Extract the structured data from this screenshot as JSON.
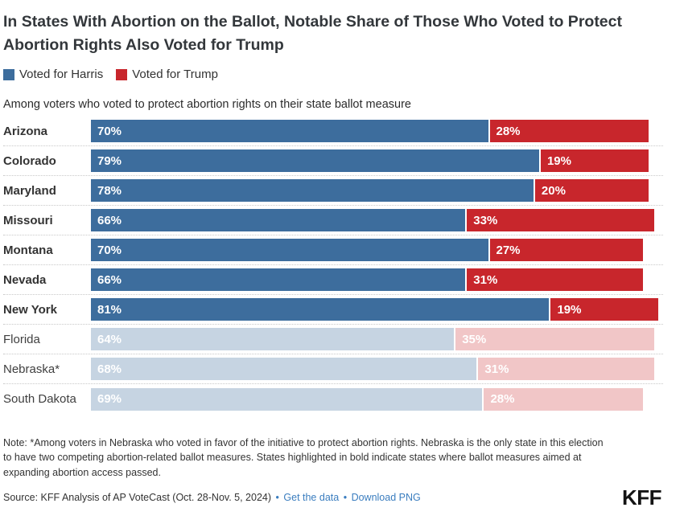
{
  "header": {
    "title": "In States With Abortion on the Ballot, Notable Share of Those Who Voted to Protect Abortion Rights Also Voted for Trump",
    "legend": [
      {
        "label": "Voted for Harris",
        "color": "#3d6d9d"
      },
      {
        "label": "Voted for Trump",
        "color": "#c8262c"
      }
    ],
    "subtitle": "Among voters who voted to protect abortion rights on their state ballot measure"
  },
  "chart_data": {
    "type": "bar",
    "orientation": "horizontal",
    "stacked": true,
    "unit": "%",
    "xlim": [
      0,
      100
    ],
    "grid": "dotted-row-separators",
    "categories": [
      "Arizona",
      "Colorado",
      "Maryland",
      "Missouri",
      "Montana",
      "Nevada",
      "New York",
      "Florida",
      "Nebraska*",
      "South Dakota"
    ],
    "series": [
      {
        "name": "Voted for Harris",
        "values": [
          70,
          79,
          78,
          66,
          70,
          66,
          81,
          64,
          68,
          69
        ]
      },
      {
        "name": "Voted for Trump",
        "values": [
          28,
          19,
          20,
          33,
          27,
          31,
          19,
          35,
          31,
          28
        ]
      }
    ],
    "ballot_measure_passed": [
      true,
      true,
      true,
      true,
      true,
      true,
      true,
      false,
      false,
      false
    ],
    "colors": {
      "harris": "#3d6d9d",
      "trump": "#c8262c",
      "harris_muted": "#c6d4e2",
      "trump_muted": "#f1c6c7"
    }
  },
  "footer": {
    "note": "Note: *Among voters in Nebraska who voted in favor of the initiative to protect abortion rights. Nebraska is the only state in this election to have two competing abortion-related ballot measures. States highlighted in bold indicate states where ballot measures aimed at expanding abortion access passed.",
    "source": "Source: KFF Analysis of AP VoteCast (Oct. 28-Nov. 5, 2024)",
    "separator": "•",
    "links": [
      "Get the data",
      "Download PNG"
    ],
    "logo": "KFF"
  }
}
